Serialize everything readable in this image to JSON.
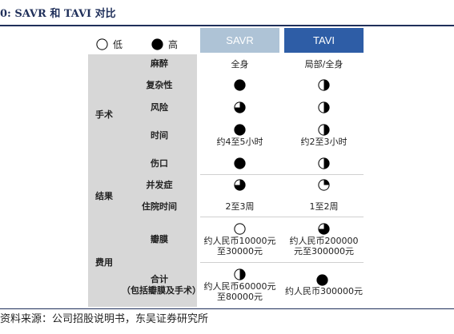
{
  "title": "0:  SAVR 和 TAVI 对比",
  "legend": {
    "low": "低",
    "high": "高"
  },
  "columns": {
    "savr": "SAVR",
    "tavi": "TAVI"
  },
  "categories": {
    "surgery": "手术",
    "outcome": "结果",
    "cost": "费用"
  },
  "rows": {
    "anesthesia": {
      "label": "麻醉",
      "savr": "全身",
      "tavi": "局部/全身"
    },
    "complexity": {
      "label": "复杂性",
      "savr_level": 1.0,
      "tavi_level": 0.5
    },
    "risk": {
      "label": "风险",
      "savr_level": 0.75,
      "tavi_level": 0.5
    },
    "time": {
      "label": "时间",
      "savr_level": 1.0,
      "tavi_level": 0.5,
      "savr": "约4至5小时",
      "tavi": "约2至3小时"
    },
    "wound": {
      "label": "伤口",
      "savr_level": 1.0,
      "tavi_level": 0.5
    },
    "complication": {
      "label": "并发症",
      "savr_level": 0.75,
      "tavi_level": 0.25
    },
    "stay": {
      "label": "住院时间",
      "savr": "2至3周",
      "tavi": "1至2周"
    },
    "valve": {
      "label": "瓣膜",
      "savr_level": 0.0,
      "tavi_level": 0.75,
      "savr_line1": "约人民币10000元",
      "savr_line2": "至30000元",
      "tavi_line1": "约人民币200000",
      "tavi_line2": "元至300000元"
    },
    "total": {
      "label_line1": "合计",
      "label_line2": "（包括瓣膜及手术）",
      "savr_level": 0.5,
      "tavi_level": 1.0,
      "savr_line1": "约人民币60000元",
      "savr_line2": "至80000元",
      "tavi": "约人民币300000元"
    }
  },
  "source": "资料来源：公司招股说明书，东吴证券研究所",
  "colors": {
    "savr_header": "#aec3d6",
    "tavi_header": "#2e5da6",
    "label_bg": "#d7d7d7",
    "ball": "#000000"
  },
  "icons": {
    "empty": "empty-circle-icon",
    "quarter": "quarter-circle-icon",
    "half": "half-circle-icon",
    "three_quarter": "three-quarter-circle-icon",
    "full": "full-circle-icon"
  }
}
